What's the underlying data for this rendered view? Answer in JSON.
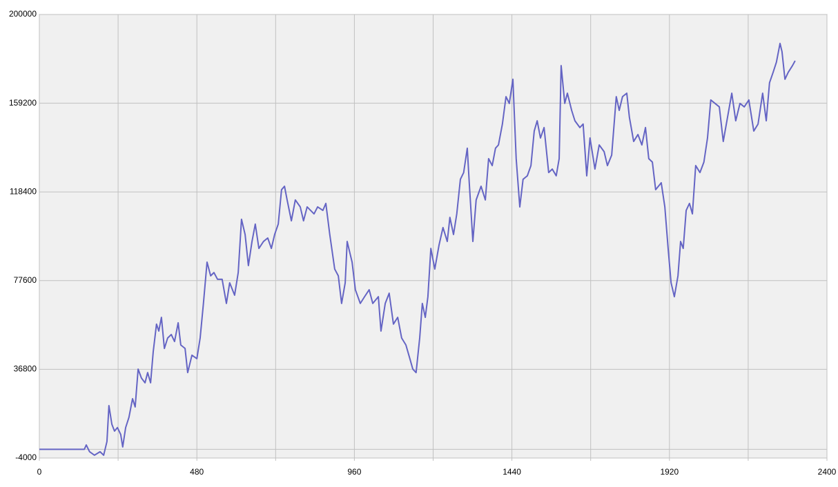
{
  "chart_data": {
    "type": "line",
    "color": "#6464c4",
    "grid": true,
    "xlim": [
      0,
      2400
    ],
    "ylim": [
      -4000,
      200000
    ],
    "xticks": [
      0,
      480,
      960,
      1440,
      1920,
      2400
    ],
    "yticks": [
      -4000,
      36800,
      77600,
      118400,
      159200,
      200000
    ],
    "xminor": [
      240,
      720,
      1200,
      1680,
      2160
    ],
    "yminor": [
      0
    ],
    "x": [
      0,
      137,
      143,
      153,
      168,
      185,
      196,
      206,
      212,
      221,
      229,
      238,
      248,
      254,
      263,
      273,
      284,
      292,
      301,
      311,
      322,
      330,
      339,
      347,
      357,
      364,
      372,
      381,
      391,
      402,
      412,
      423,
      431,
      444,
      452,
      465,
      480,
      490,
      500,
      511,
      522,
      532,
      543,
      557,
      570,
      580,
      595,
      606,
      616,
      627,
      637,
      648,
      658,
      669,
      683,
      696,
      707,
      717,
      728,
      738,
      747,
      755,
      768,
      780,
      795,
      805,
      816,
      837,
      848,
      864,
      873,
      885,
      900,
      911,
      921,
      932,
      938,
      953,
      963,
      978,
      991,
      1005,
      1016,
      1033,
      1041,
      1054,
      1066,
      1079,
      1092,
      1104,
      1117,
      1129,
      1138,
      1148,
      1159,
      1167,
      1176,
      1184,
      1193,
      1205,
      1218,
      1230,
      1243,
      1251,
      1262,
      1272,
      1283,
      1293,
      1304,
      1310,
      1321,
      1331,
      1346,
      1359,
      1369,
      1380,
      1390,
      1399,
      1411,
      1422,
      1432,
      1443,
      1453,
      1464,
      1474,
      1487,
      1498,
      1508,
      1517,
      1527,
      1538,
      1552,
      1563,
      1575,
      1584,
      1590,
      1601,
      1609,
      1622,
      1632,
      1647,
      1657,
      1668,
      1678,
      1693,
      1706,
      1721,
      1731,
      1744,
      1758,
      1767,
      1777,
      1790,
      1798,
      1811,
      1824,
      1836,
      1847,
      1857,
      1868,
      1878,
      1895,
      1906,
      1916,
      1925,
      1935,
      1946,
      1954,
      1962,
      1971,
      1981,
      1990,
      2000,
      2013,
      2025,
      2036,
      2046,
      2059,
      2072,
      2084,
      2097,
      2110,
      2122,
      2135,
      2148,
      2162,
      2177,
      2190,
      2204,
      2215,
      2225,
      2236,
      2246,
      2257,
      2263,
      2272,
      2282,
      2295,
      2303
    ],
    "values": [
      0,
      0,
      2000,
      -1100,
      -2700,
      -1100,
      -2700,
      3600,
      20100,
      11500,
      8400,
      10000,
      6800,
      1100,
      10000,
      14700,
      23300,
      19500,
      36900,
      32800,
      30600,
      35300,
      30600,
      44900,
      57600,
      54400,
      60700,
      46400,
      51200,
      52800,
      49600,
      58200,
      48000,
      46400,
      35300,
      43300,
      41700,
      51200,
      67100,
      86100,
      79800,
      81300,
      78200,
      78200,
      67100,
      76600,
      70900,
      81300,
      105800,
      98800,
      84500,
      95600,
      103600,
      92400,
      95600,
      97200,
      92400,
      98800,
      103600,
      119400,
      121000,
      114700,
      105100,
      114700,
      111500,
      105100,
      111500,
      108300,
      111500,
      109900,
      113100,
      98800,
      82900,
      79800,
      67100,
      76600,
      95600,
      86100,
      73400,
      67100,
      70200,
      73400,
      67100,
      70200,
      54400,
      67100,
      71800,
      57600,
      60700,
      51200,
      48000,
      41700,
      36900,
      35300,
      51200,
      67100,
      60700,
      70200,
      92400,
      82900,
      94000,
      102000,
      95600,
      106700,
      98800,
      108300,
      124200,
      127300,
      138500,
      122600,
      95600,
      114700,
      121000,
      114700,
      133700,
      130500,
      138500,
      140000,
      149600,
      162200,
      159100,
      170200,
      133700,
      111500,
      124200,
      125800,
      130500,
      146400,
      151100,
      143200,
      148000,
      127300,
      128900,
      125800,
      133700,
      176500,
      159100,
      163800,
      155900,
      151100,
      148000,
      149600,
      125800,
      143200,
      128900,
      140000,
      136900,
      130500,
      135300,
      162200,
      155900,
      162200,
      163800,
      152700,
      141600,
      144800,
      140000,
      148000,
      133700,
      132100,
      119400,
      122600,
      111500,
      92400,
      76600,
      70200,
      79800,
      95600,
      92400,
      109900,
      113100,
      108300,
      130500,
      127300,
      132100,
      143200,
      160700,
      159100,
      157500,
      141600,
      152700,
      163800,
      151100,
      159100,
      157500,
      160700,
      146400,
      149600,
      163800,
      151100,
      168600,
      173400,
      178100,
      186700,
      182900,
      170200,
      173400,
      176500,
      178700
    ]
  }
}
